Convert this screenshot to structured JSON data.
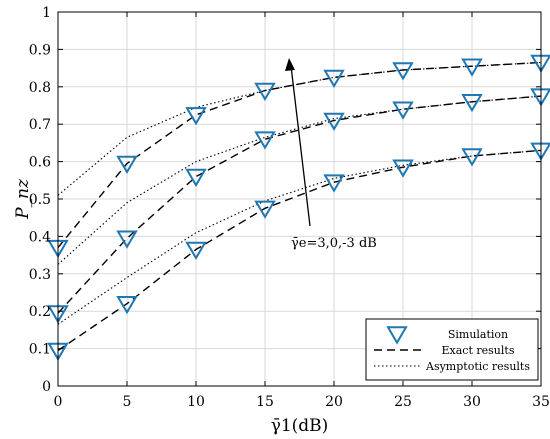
{
  "chart_data": {
    "type": "line",
    "title": "",
    "xlabel": "γ̄1(dB)",
    "ylabel": "P_nz",
    "xlim": [
      0,
      35
    ],
    "ylim": [
      0,
      1
    ],
    "grid": true,
    "xticks": [
      0,
      5,
      10,
      15,
      20,
      25,
      30,
      35
    ],
    "xtick_labels": [
      "0",
      "5",
      "10",
      "15",
      "20",
      "25",
      "30",
      "35"
    ],
    "yticks": [
      0,
      0.1,
      0.2,
      0.3,
      0.4,
      0.5,
      0.6,
      0.7,
      0.8,
      0.9,
      1
    ],
    "ytick_labels": [
      "0",
      "0.1",
      "0.2",
      "0.3",
      "0.4",
      "0.5",
      "0.6",
      "0.7",
      "0.8",
      "0.9",
      "1"
    ],
    "annotation": "γ̄e=3,0,-3 dB",
    "legend_position": "bottom-right",
    "legend": {
      "simulation": "Simulation",
      "exact": "Exact results",
      "asymptotic": "Asymptotic results"
    },
    "colors": {
      "simulation_marker": "#1f77b4",
      "lines": "#000000",
      "grid": "#d9d9d9"
    },
    "x": [
      0,
      5,
      10,
      15,
      20,
      25,
      30,
      35
    ],
    "groups": [
      {
        "simulation": [
          0.37,
          0.595,
          0.725,
          0.79,
          0.825,
          0.845,
          0.855,
          0.865
        ],
        "exact": [
          0.37,
          0.595,
          0.725,
          0.79,
          0.825,
          0.845,
          0.855,
          0.865
        ],
        "asymptotic": [
          0.51,
          0.665,
          0.745,
          0.79,
          0.825,
          0.845,
          0.855,
          0.865
        ]
      },
      {
        "simulation": [
          0.195,
          0.395,
          0.56,
          0.66,
          0.71,
          0.74,
          0.76,
          0.775
        ],
        "exact": [
          0.195,
          0.395,
          0.56,
          0.66,
          0.71,
          0.74,
          0.76,
          0.775
        ],
        "asymptotic": [
          0.325,
          0.49,
          0.6,
          0.665,
          0.715,
          0.74,
          0.76,
          0.775
        ]
      },
      {
        "simulation": [
          0.095,
          0.22,
          0.365,
          0.475,
          0.545,
          0.585,
          0.615,
          0.63
        ],
        "exact": [
          0.095,
          0.22,
          0.365,
          0.475,
          0.545,
          0.585,
          0.615,
          0.63
        ],
        "asymptotic": [
          0.165,
          0.29,
          0.41,
          0.495,
          0.555,
          0.59,
          0.615,
          0.63
        ]
      }
    ]
  }
}
